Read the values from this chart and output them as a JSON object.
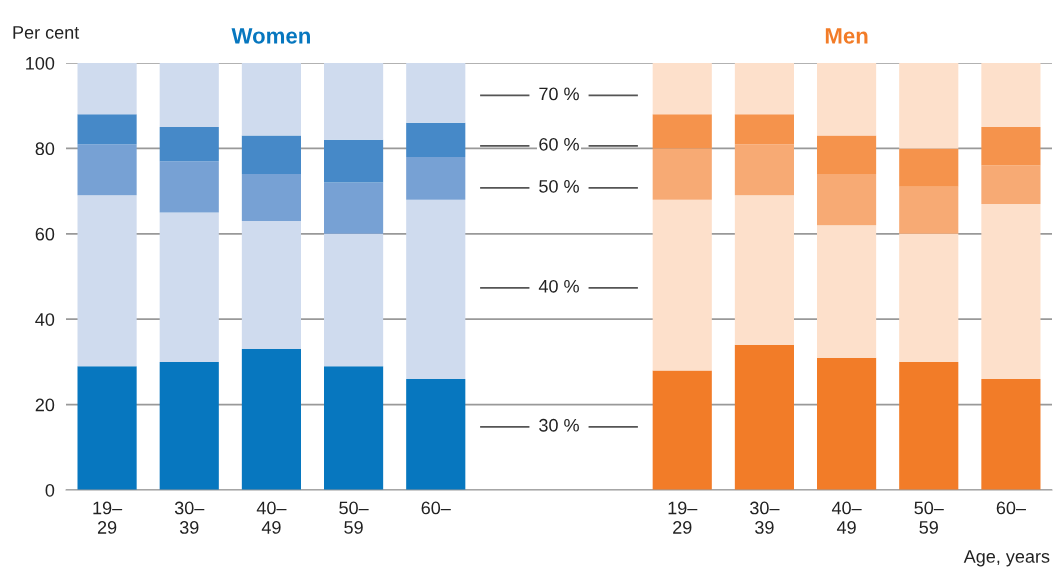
{
  "chart_data": {
    "type": "bar",
    "stacked": true,
    "ylabel": "Per cent",
    "xlabel": "Age, years",
    "categories": [
      "19–\n29",
      "30–\n39",
      "40–\n49",
      "50–\n59",
      "60–",
      null,
      null,
      "19–\n29",
      "30–\n39",
      "40–\n49",
      "50–\n59",
      "60–"
    ],
    "series": [
      {
        "color": "#0777bf",
        "values": [
          29,
          30,
          33,
          29,
          26,
          null,
          null,
          null,
          null,
          null,
          null,
          null
        ]
      },
      {
        "color": "#cfdbee",
        "values": [
          40,
          35,
          30,
          31,
          42,
          null,
          null,
          null,
          null,
          null,
          null,
          null
        ]
      },
      {
        "color": "#77a1d4",
        "values": [
          12,
          12,
          11,
          12,
          10,
          null,
          null,
          null,
          null,
          null,
          null,
          null
        ]
      },
      {
        "color": "#4689c8",
        "values": [
          7,
          8,
          9,
          10,
          8,
          null,
          null,
          null,
          null,
          null,
          null,
          null
        ]
      },
      {
        "color": "#cfdbee",
        "values": [
          12,
          15,
          17,
          18,
          14,
          null,
          null,
          null,
          null,
          null,
          null,
          null
        ]
      },
      {
        "color": "#f27c28",
        "values": [
          null,
          null,
          null,
          null,
          null,
          null,
          null,
          28,
          34,
          31,
          30,
          26
        ]
      },
      {
        "color": "#fde0cb",
        "values": [
          null,
          null,
          null,
          null,
          null,
          null,
          null,
          40,
          35,
          31,
          30,
          41
        ]
      },
      {
        "color": "#f7aa74",
        "values": [
          null,
          null,
          null,
          null,
          null,
          null,
          null,
          12,
          12,
          12,
          11,
          9
        ]
      },
      {
        "color": "#f5934c",
        "values": [
          null,
          null,
          null,
          null,
          null,
          null,
          null,
          8,
          7,
          9,
          9,
          9
        ]
      },
      {
        "color": "#fde0cb",
        "values": [
          null,
          null,
          null,
          null,
          null,
          null,
          null,
          12,
          12,
          17,
          20,
          15
        ]
      }
    ],
    "annotations": [
      "Women",
      "Men",
      "30 %",
      "40 %",
      "50 %",
      "60 %",
      "70 %"
    ],
    "ylim": [
      0,
      100
    ],
    "yticks": [
      0,
      20,
      40,
      60,
      80,
      100
    ],
    "grid": "y",
    "legend": false
  }
}
